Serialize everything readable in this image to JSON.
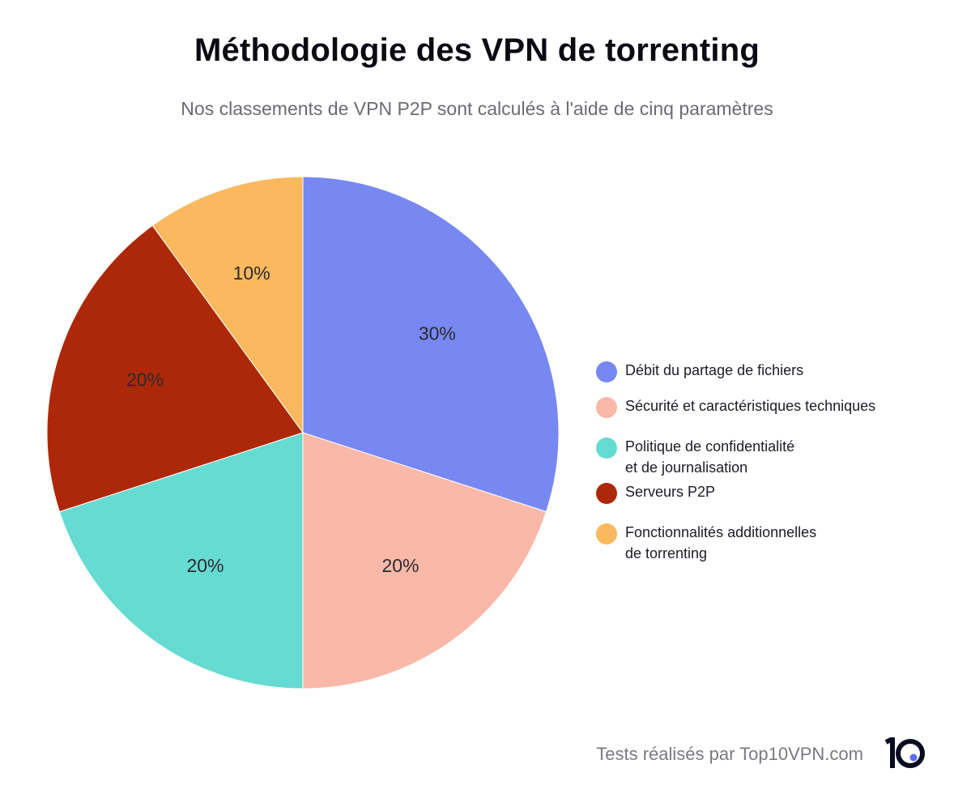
{
  "chart_data": {
    "type": "pie",
    "title": "Méthodologie des VPN de torrenting",
    "subtitle": "Nos classements de VPN P2P sont calculés à l'aide de cinq paramètres",
    "slices": [
      {
        "label": "Débit du partage de fichiers",
        "value": 30,
        "data_label": "30%",
        "color": "#7788f2"
      },
      {
        "label": "Sécurité et caractéristiques techniques",
        "value": 20,
        "data_label": "20%",
        "color": "#fab8a8"
      },
      {
        "label": "Politique de confidentialité et de journalisation",
        "label_lines": [
          "Politique de confidentialité",
          "et de journalisation"
        ],
        "value": 20,
        "data_label": "20%",
        "color": "#66dbd2"
      },
      {
        "label": "Serveurs P2P",
        "value": 20,
        "data_label": "20%",
        "color": "#ad2808"
      },
      {
        "label": "Fonctionnalités additionnelles de torrenting",
        "label_lines": [
          "Fonctionnalités additionnelles",
          "de torrenting"
        ],
        "value": 10,
        "data_label": "10%",
        "color": "#fab95e"
      }
    ],
    "legend_position": "right"
  },
  "footer": {
    "credit": "Tests réalisés par Top10VPN.com",
    "logo_text": "1O",
    "logo_dot_color": "#5d6cf0"
  }
}
